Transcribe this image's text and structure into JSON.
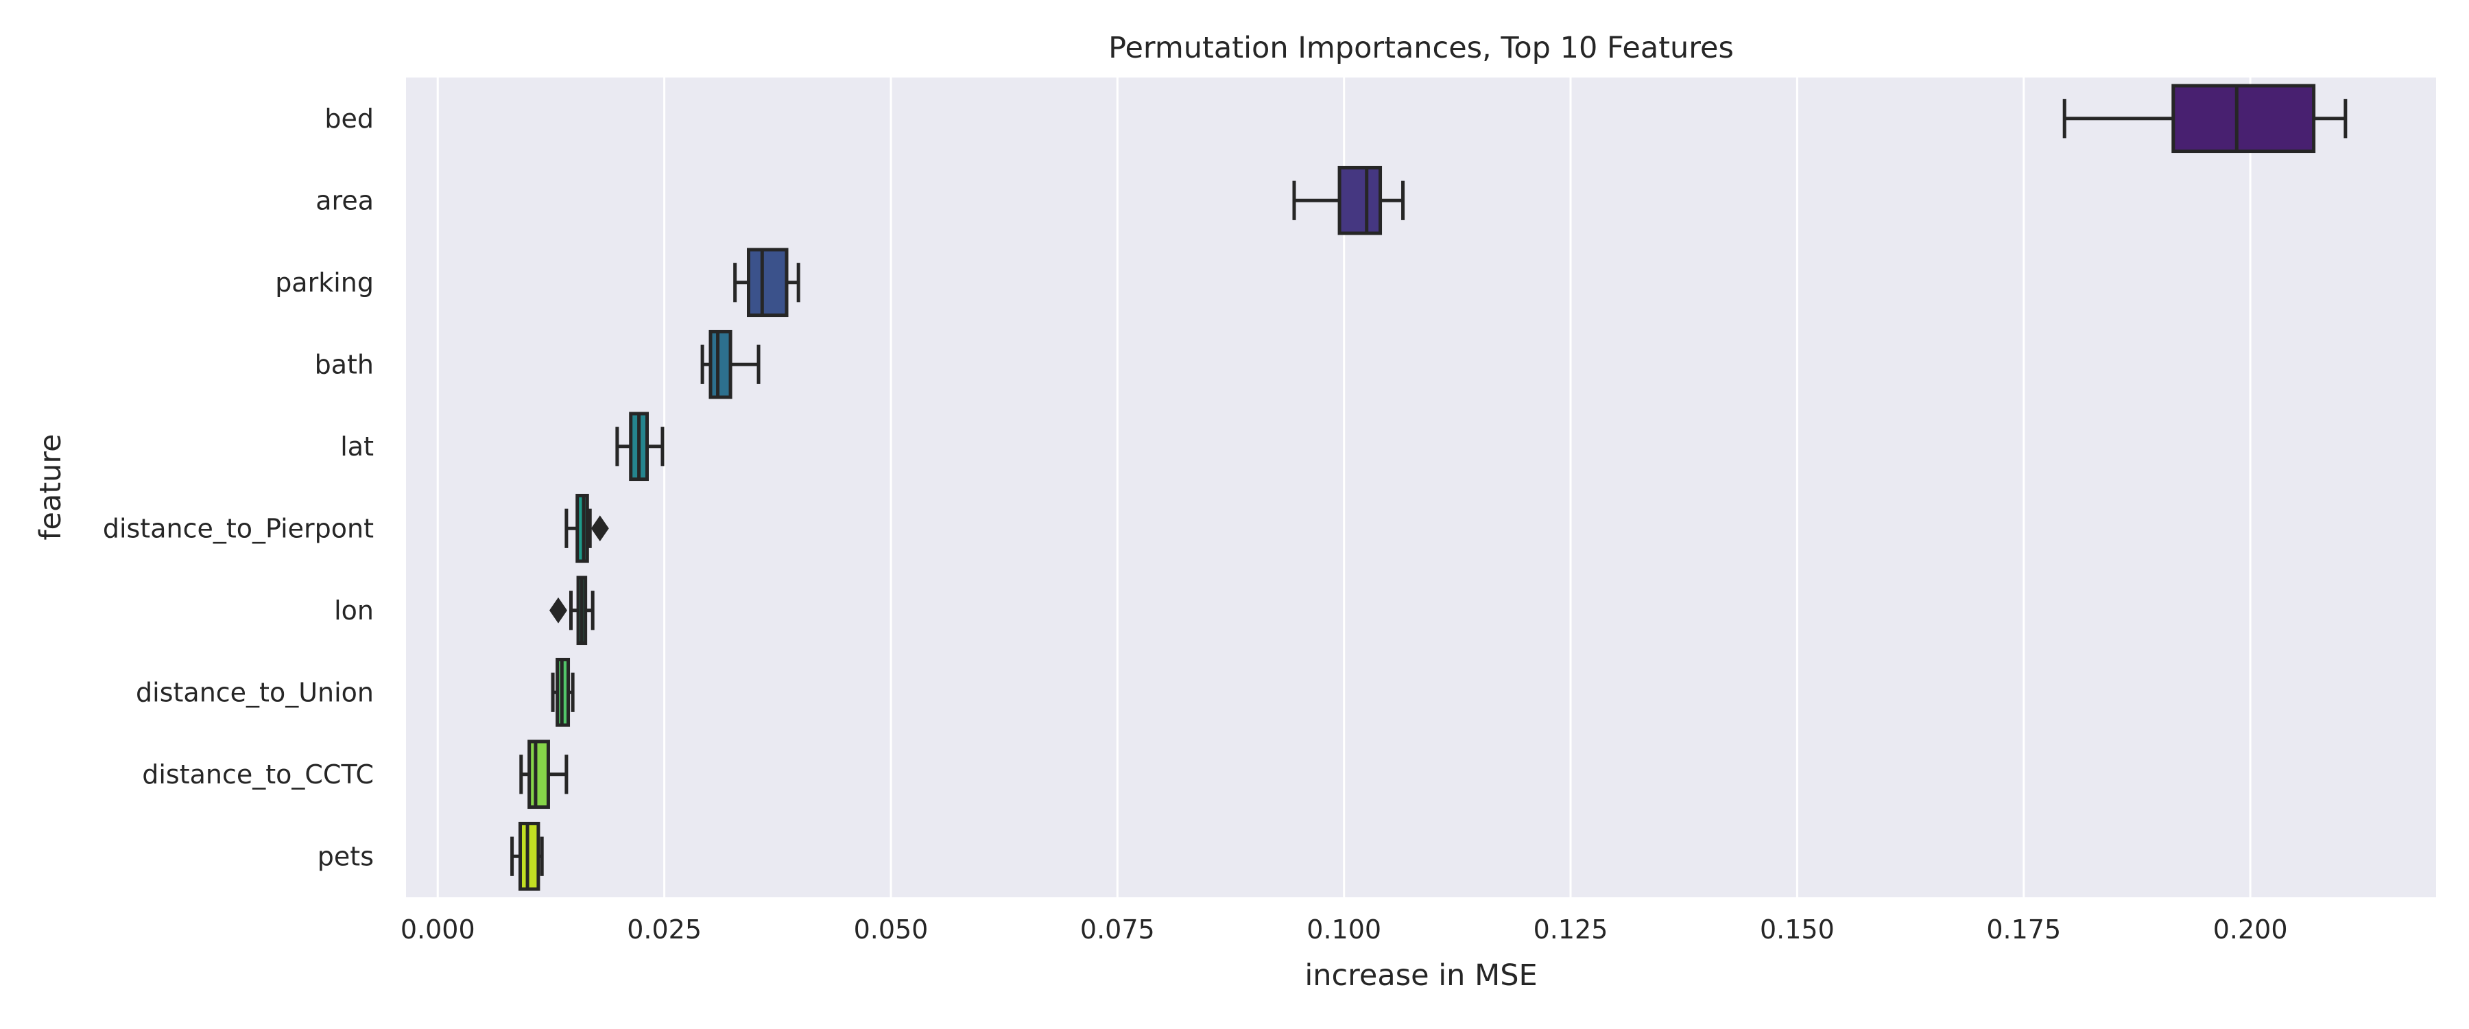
{
  "chart_data": {
    "type": "boxplot",
    "orientation": "horizontal",
    "title": "Permutation Importances, Top 10 Features",
    "xlabel": "increase in MSE",
    "ylabel": "feature",
    "xlim": [
      -0.0035,
      0.2205
    ],
    "xticks": [
      0.0,
      0.025,
      0.05,
      0.075,
      0.1,
      0.125,
      0.15,
      0.175,
      0.2
    ],
    "xtick_labels": [
      "0.000",
      "0.025",
      "0.050",
      "0.075",
      "0.100",
      "0.125",
      "0.150",
      "0.175",
      "0.200"
    ],
    "grid": true,
    "style": "seaborn-darkgrid",
    "palette": "viridis",
    "boxes": [
      {
        "feature": "bed",
        "whisker_low": 0.1795,
        "q1": 0.1915,
        "median": 0.1985,
        "q3": 0.207,
        "whisker_high": 0.2105,
        "outliers": [],
        "color": "#482070"
      },
      {
        "feature": "area",
        "whisker_low": 0.0945,
        "q1": 0.0995,
        "median": 0.1025,
        "q3": 0.104,
        "whisker_high": 0.1065,
        "outliers": [],
        "color": "#453781"
      },
      {
        "feature": "parking",
        "whisker_low": 0.0328,
        "q1": 0.0343,
        "median": 0.0358,
        "q3": 0.0385,
        "whisker_high": 0.0398,
        "outliers": [],
        "color": "#3b528b"
      },
      {
        "feature": "bath",
        "whisker_low": 0.0292,
        "q1": 0.0301,
        "median": 0.0309,
        "q3": 0.0323,
        "whisker_high": 0.0354,
        "outliers": [],
        "color": "#2d708e"
      },
      {
        "feature": "lat",
        "whisker_low": 0.0198,
        "q1": 0.0213,
        "median": 0.0222,
        "q3": 0.0231,
        "whisker_high": 0.0248,
        "outliers": [],
        "color": "#25858e"
      },
      {
        "feature": "distance_to_Pierpont",
        "whisker_low": 0.0142,
        "q1": 0.0154,
        "median": 0.0161,
        "q3": 0.0165,
        "whisker_high": 0.0168,
        "outliers": [
          0.0179
        ],
        "color": "#1e9b8a"
      },
      {
        "feature": "lon",
        "whisker_low": 0.0147,
        "q1": 0.0155,
        "median": 0.0159,
        "q3": 0.0163,
        "whisker_high": 0.0171,
        "outliers": [
          0.0133
        ],
        "color": "#2ab07f"
      },
      {
        "feature": "distance_to_Union",
        "whisker_low": 0.0127,
        "q1": 0.0132,
        "median": 0.0137,
        "q3": 0.0144,
        "whisker_high": 0.0149,
        "outliers": [],
        "color": "#52c569"
      },
      {
        "feature": "distance_to_CCTC",
        "whisker_low": 0.0092,
        "q1": 0.0101,
        "median": 0.0108,
        "q3": 0.0122,
        "whisker_high": 0.0142,
        "outliers": [],
        "color": "#86d549"
      },
      {
        "feature": "pets",
        "whisker_low": 0.0082,
        "q1": 0.0091,
        "median": 0.0099,
        "q3": 0.0111,
        "whisker_high": 0.0115,
        "outliers": [],
        "color": "#c2df23"
      }
    ]
  }
}
